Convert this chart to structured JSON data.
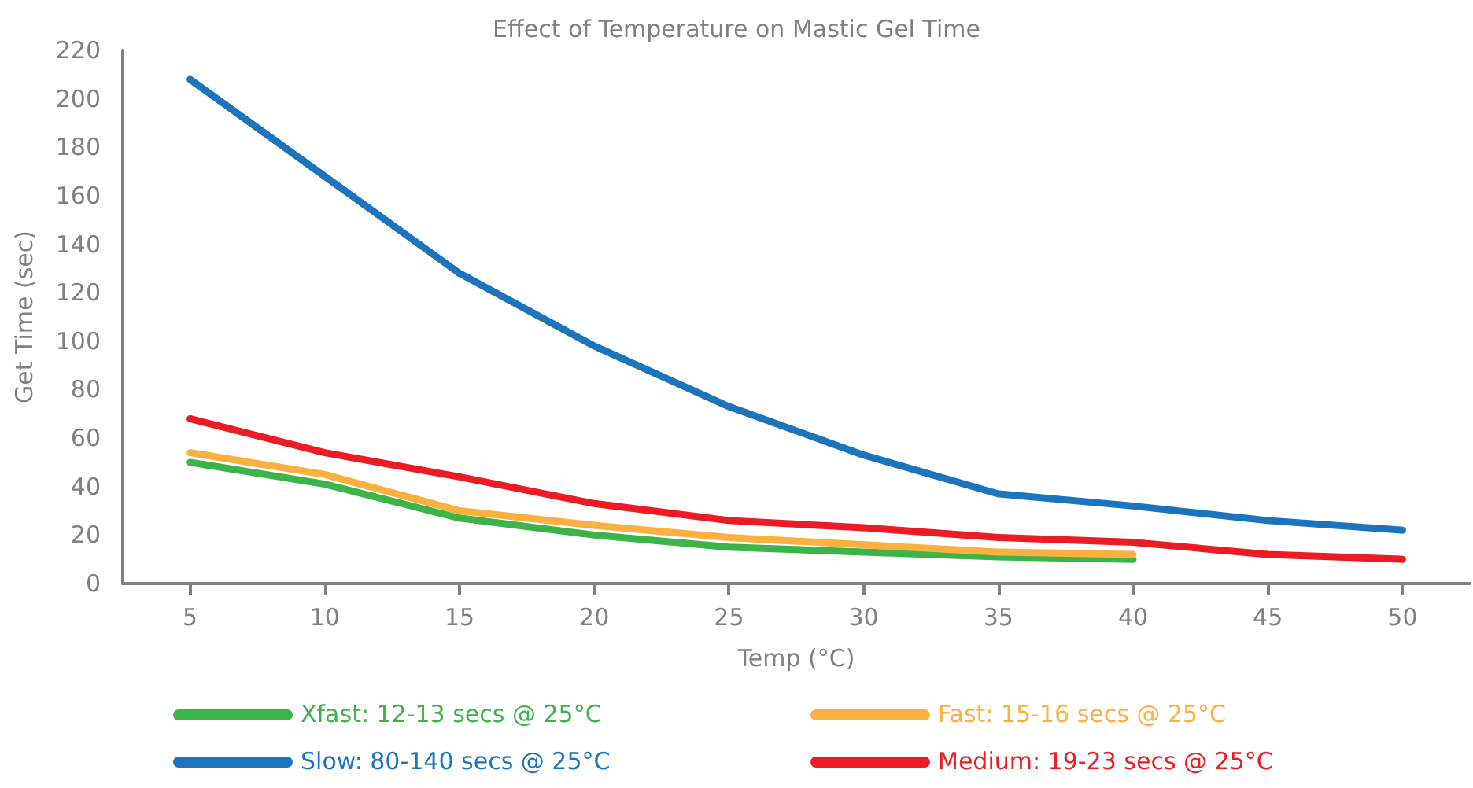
{
  "chart_data": {
    "type": "line",
    "title": "Effect of Temperature on Mastic Gel Time",
    "xlabel": "Temp (°C)",
    "ylabel": "Get Time (sec)",
    "categories": [
      "5",
      "10",
      "15",
      "20",
      "25",
      "30",
      "35",
      "40",
      "45",
      "50"
    ],
    "series": [
      {
        "name": "Xfast: 12-13 secs @ 25°C",
        "color": "#3cb44a",
        "values": [
          50,
          41,
          27,
          20,
          15,
          13,
          11,
          10,
          null,
          null
        ]
      },
      {
        "name": "Fast: 15-16 secs @ 25°C",
        "color": "#fbb040",
        "values": [
          54,
          45,
          30,
          24,
          19,
          16,
          13,
          12,
          null,
          null
        ]
      },
      {
        "name": "Slow: 80-140 secs @ 25°C",
        "color": "#1c75bc",
        "values": [
          208,
          168,
          128,
          98,
          73,
          53,
          37,
          32,
          26,
          22
        ]
      },
      {
        "name": "Medium: 19-23 secs @ 25°C",
        "color": "#ed1c24",
        "values": [
          68,
          54,
          44,
          33,
          26,
          23,
          19,
          17,
          12,
          10
        ]
      }
    ],
    "ylim": [
      0,
      220
    ],
    "yticks": [
      0,
      20,
      40,
      60,
      80,
      100,
      120,
      140,
      160,
      180,
      200,
      220
    ],
    "grid": false,
    "legend": "bottom",
    "marker": "none",
    "line_style": "solid"
  }
}
